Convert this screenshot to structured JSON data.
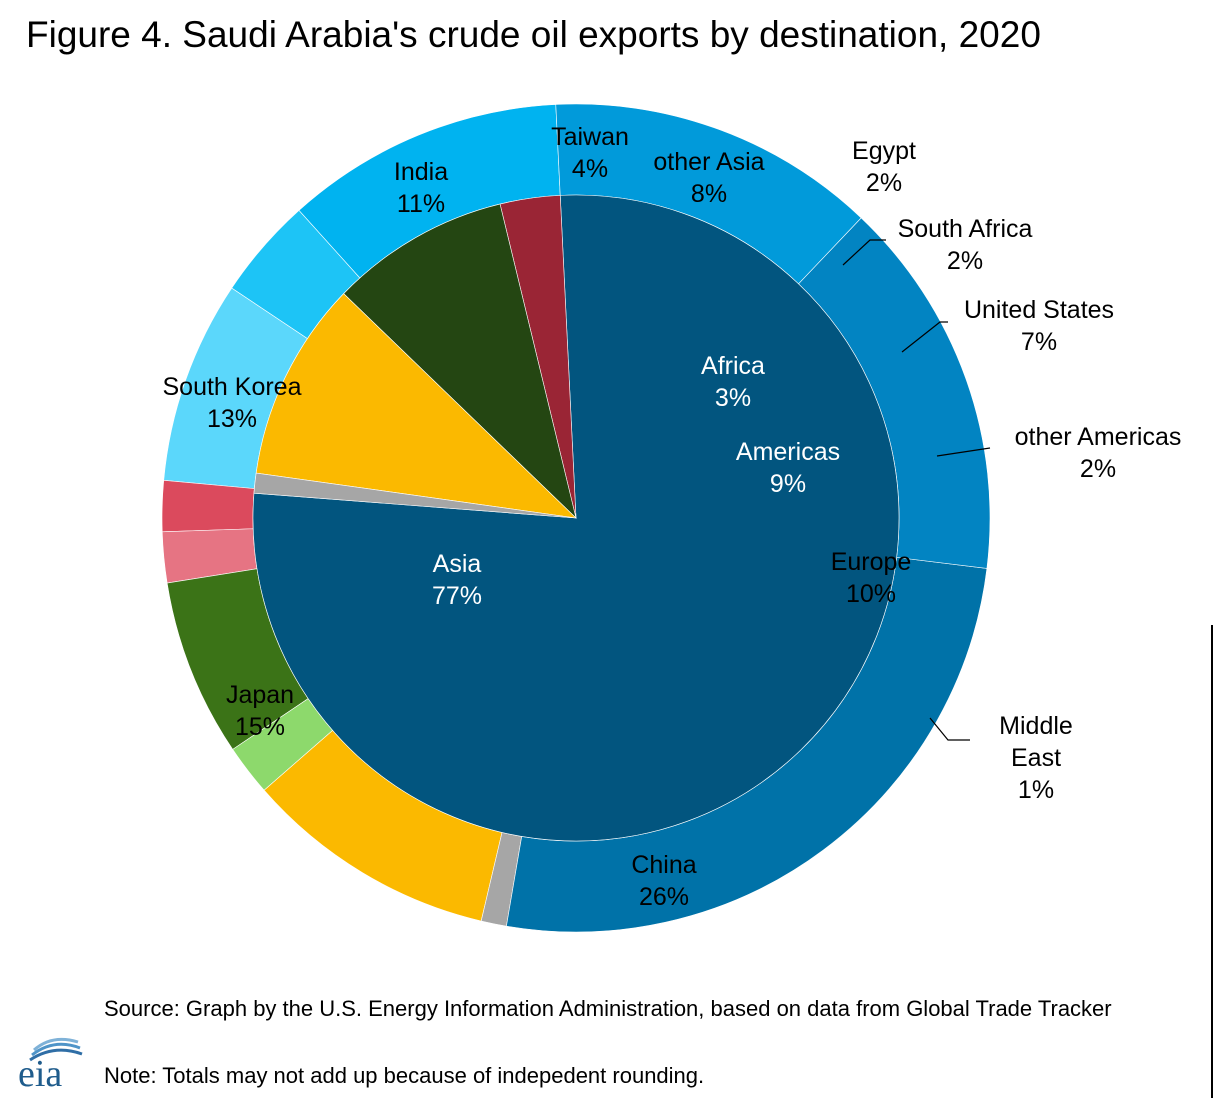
{
  "title": "Figure 4. Saudi Arabia's crude oil exports by destination, 2020",
  "chart_data": {
    "type": "pie",
    "title": "Figure 4. Saudi Arabia's crude oil exports by destination, 2020",
    "inner_ring": [
      {
        "name": "Asia",
        "value": 77,
        "label": "77%",
        "color": "#02557f"
      },
      {
        "name": "Africa",
        "value": 3,
        "label": "3%",
        "color": "#9a2535"
      },
      {
        "name": "Americas",
        "value": 9,
        "label": "9%",
        "color": "#244612"
      },
      {
        "name": "Europe",
        "value": 10,
        "label": "10%",
        "color": "#fbb900"
      },
      {
        "name": "Middle East",
        "value": 1,
        "label": "1%",
        "color": "#a6a6a6"
      }
    ],
    "outer_ring": [
      {
        "name": "India",
        "value": 11,
        "label": "11%",
        "color": "#00b3f0"
      },
      {
        "name": "Taiwan",
        "value": 4,
        "label": "4%",
        "color": "#1dc4f6"
      },
      {
        "name": "other Asia",
        "value": 8,
        "label": "8%",
        "color": "#5bd7fb"
      },
      {
        "name": "Egypt",
        "value": 2,
        "label": "2%",
        "color": "#db4a5d"
      },
      {
        "name": "South Africa",
        "value": 2,
        "label": "2%",
        "color": "#e67483"
      },
      {
        "name": "United States",
        "value": 7,
        "label": "7%",
        "color": "#3b7317"
      },
      {
        "name": "other Americas",
        "value": 2,
        "label": "2%",
        "color": "#8dd96c"
      },
      {
        "name": "Europe",
        "value": 10,
        "label": "",
        "color": "#fbb900"
      },
      {
        "name": "Middle East",
        "value": 1,
        "label": "",
        "color": "#a6a6a6"
      },
      {
        "name": "China",
        "value": 26,
        "label": "26%",
        "color": "#0072a8"
      },
      {
        "name": "Japan",
        "value": 15,
        "label": "15%",
        "color": "#0284c2"
      },
      {
        "name": "South Korea",
        "value": 13,
        "label": "13%",
        "color": "#019ada"
      }
    ]
  },
  "footer": {
    "source": "Source: Graph by the U.S. Energy Information Administration, based on data from Global Trade Tracker",
    "note": "Note: Totals may not add up because of indepedent rounding.",
    "logo_text": "eia"
  }
}
